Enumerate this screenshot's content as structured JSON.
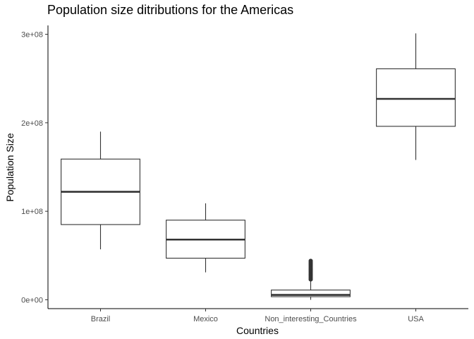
{
  "chart_data": {
    "type": "boxplot",
    "title": "Population size ditributions for the Americas",
    "xlabel": "Countries",
    "ylabel": "Population Size",
    "ylim": [
      -10000000,
      310000000
    ],
    "yticks": [
      {
        "value": 0,
        "label": "0e+00"
      },
      {
        "value": 100000000,
        "label": "1e+08"
      },
      {
        "value": 200000000,
        "label": "2e+08"
      },
      {
        "value": 300000000,
        "label": "3e+08"
      }
    ],
    "grid": false,
    "legend": "none",
    "categories": [
      "Brazil",
      "Mexico",
      "Non_interesting_Countries",
      "USA"
    ],
    "boxes": [
      {
        "category": "Brazil",
        "min": 57000000,
        "q1": 85000000,
        "median": 122000000,
        "q3": 159000000,
        "max": 190000000,
        "outliers": []
      },
      {
        "category": "Mexico",
        "min": 31000000,
        "q1": 47000000,
        "median": 68000000,
        "q3": 90000000,
        "max": 109000000,
        "outliers": []
      },
      {
        "category": "Non_interesting_Countries",
        "min": 0,
        "q1": 3500000,
        "median": 5500000,
        "q3": 11000000,
        "max": 22000000,
        "outliers": [
          23000000,
          24500000,
          26000000,
          27500000,
          29000000,
          30500000,
          32000000,
          33500000,
          35000000,
          36500000,
          38000000,
          39500000,
          41000000,
          42500000,
          44000000
        ]
      },
      {
        "category": "USA",
        "min": 158000000,
        "q1": 196000000,
        "median": 227000000,
        "q3": 261000000,
        "max": 301000000,
        "outliers": []
      }
    ]
  }
}
